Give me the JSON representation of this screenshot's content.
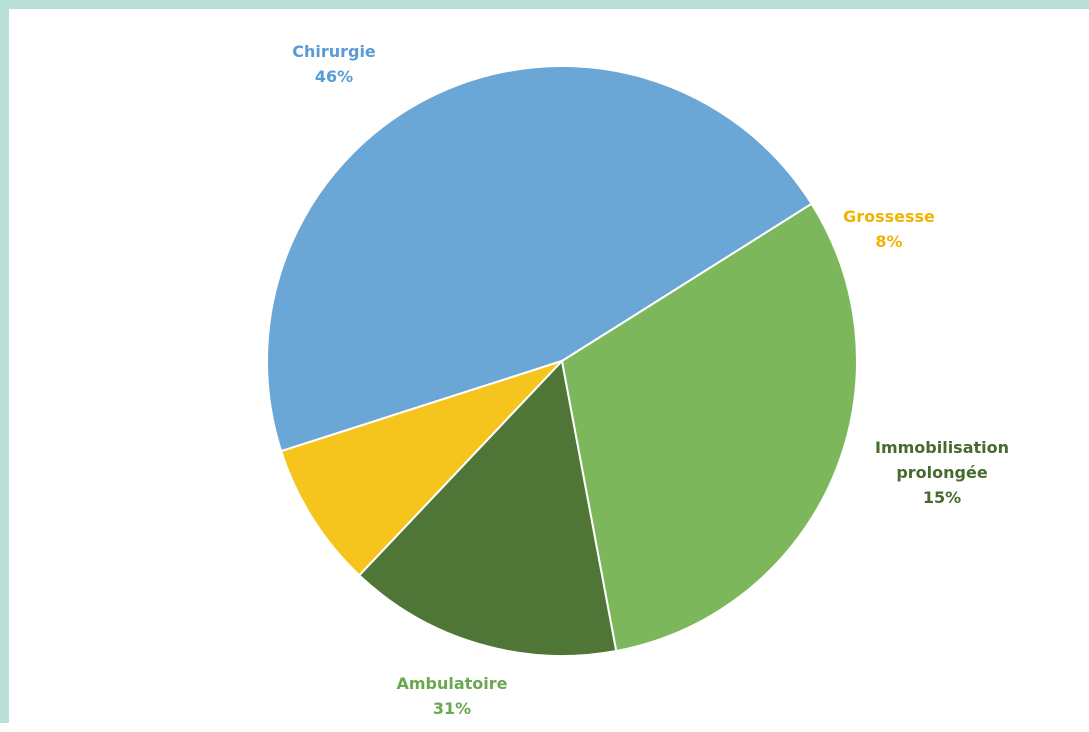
{
  "chart_data": {
    "type": "pie",
    "categories": [
      "Chirurgie",
      "Grossesse",
      "Immobilisation prolongée",
      "Ambulatoire"
    ],
    "values": [
      46,
      8,
      15,
      31
    ],
    "value_labels": [
      "46%",
      "8%",
      "15%",
      "31%"
    ],
    "colors": [
      "#6aa6d6",
      "#f6c51d",
      "#4f7636",
      "#7db75b"
    ],
    "label_colors": [
      "#5b9bd5",
      "#f0b400",
      "#476b2e",
      "#6aa84f"
    ],
    "label_lines": [
      [
        "Chirurgie"
      ],
      [
        "Grossesse"
      ],
      [
        "Immobilisation",
        "prolongée"
      ],
      [
        "Ambulatoire"
      ]
    ],
    "legend": "none"
  }
}
